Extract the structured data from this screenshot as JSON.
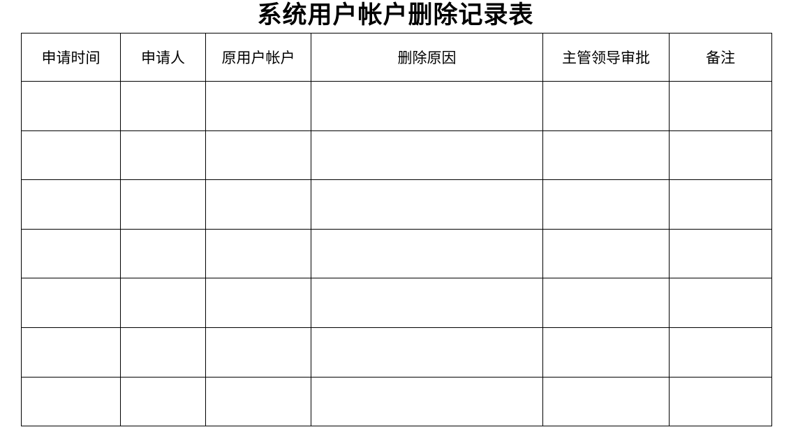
{
  "title": "系统用户帐户删除记录表",
  "table": {
    "headers": [
      "申请时间",
      "申请人",
      "原用户帐户",
      "删除原因",
      "主管领导审批",
      "备注"
    ],
    "rows": [
      [
        "",
        "",
        "",
        "",
        "",
        ""
      ],
      [
        "",
        "",
        "",
        "",
        "",
        ""
      ],
      [
        "",
        "",
        "",
        "",
        "",
        ""
      ],
      [
        "",
        "",
        "",
        "",
        "",
        ""
      ],
      [
        "",
        "",
        "",
        "",
        "",
        ""
      ],
      [
        "",
        "",
        "",
        "",
        "",
        ""
      ],
      [
        "",
        "",
        "",
        "",
        "",
        ""
      ]
    ]
  }
}
